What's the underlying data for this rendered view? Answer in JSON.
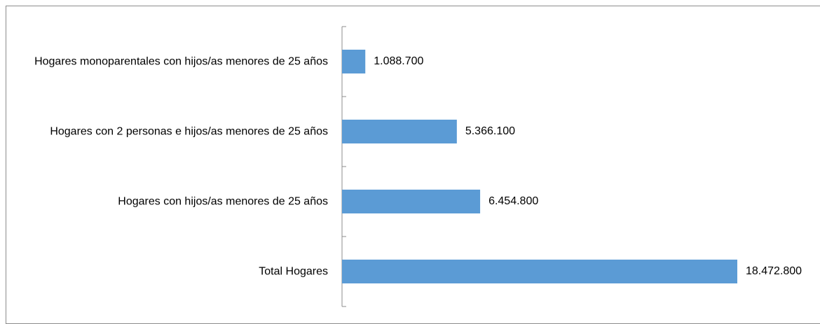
{
  "chart_data": {
    "type": "bar",
    "orientation": "horizontal",
    "categories": [
      "Hogares monoparentales con hijos/as menores de 25 años",
      "Hogares con 2 personas e hijos/as menores de 25 años",
      "Hogares con hijos/as menores de 25 años",
      "Total Hogares"
    ],
    "values": [
      1088700,
      5366100,
      6454800,
      18472800
    ],
    "value_labels": [
      "1.088.700",
      "5.366.100",
      "6.454.800",
      "18.472.800"
    ],
    "color": "#5b9bd5"
  }
}
